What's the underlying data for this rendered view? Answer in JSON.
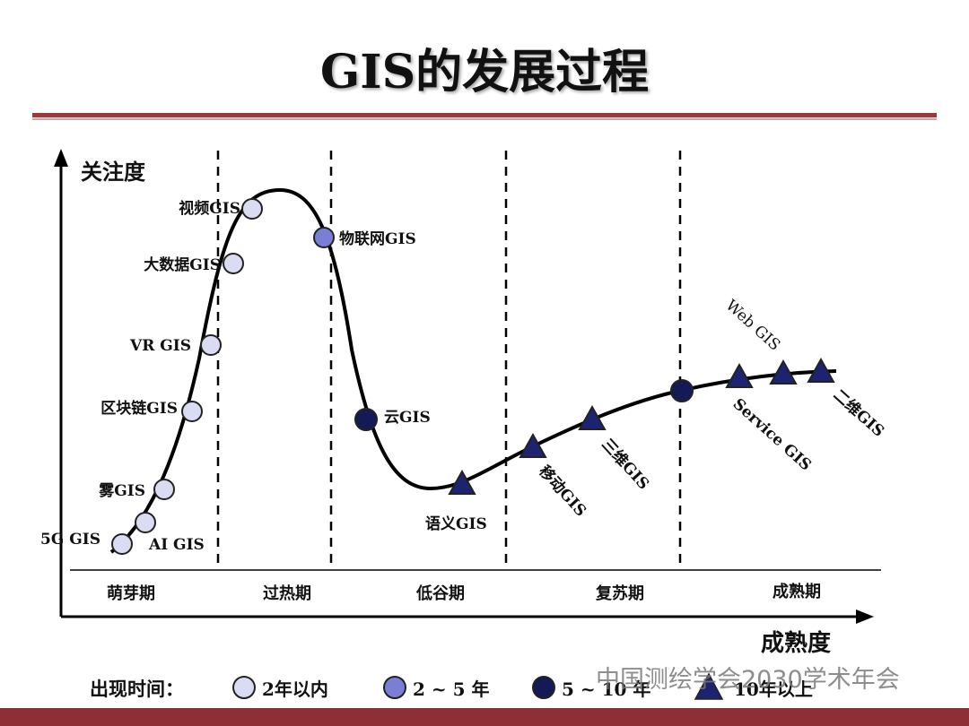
{
  "title": "GIS的发展过程",
  "axes": {
    "y_label": "关注度",
    "x_label": "成熟度"
  },
  "phases": [
    "萌芽期",
    "过热期",
    "低谷期",
    "复苏期",
    "成熟期"
  ],
  "technologies": [
    {
      "label": "5G GIS",
      "marker": "lt2"
    },
    {
      "label": "AI GIS",
      "marker": "lt2"
    },
    {
      "label": "雾GIS",
      "marker": "lt2"
    },
    {
      "label": "区块链GIS",
      "marker": "lt2"
    },
    {
      "label": "VR GIS",
      "marker": "lt2"
    },
    {
      "label": "大数据GIS",
      "marker": "lt2"
    },
    {
      "label": "视频GIS",
      "marker": "lt2"
    },
    {
      "label": "物联网GIS",
      "marker": "2to5"
    },
    {
      "label": "云GIS",
      "marker": "5to10"
    },
    {
      "label": "语义GIS",
      "marker": "gt10"
    },
    {
      "label": "移动GIS",
      "marker": "gt10"
    },
    {
      "label": "三维GIS",
      "marker": "gt10"
    },
    {
      "label": "Web GIS",
      "marker": "5to10"
    },
    {
      "label": "Service GIS",
      "marker": "gt10"
    },
    {
      "label": "二维GIS",
      "marker": "gt10"
    }
  ],
  "legend": {
    "title": "出现时间：",
    "items": [
      {
        "label": "2年以内",
        "marker": "lt2"
      },
      {
        "label": "2 ~ 5 年",
        "marker": "2to5"
      },
      {
        "label": "5 ~ 10 年",
        "marker": "5to10"
      },
      {
        "label": "10年以上",
        "marker": "gt10"
      }
    ]
  },
  "marker_colors": {
    "lt2": "#d9dcf2",
    "2to5": "#7b7fd4",
    "5to10": "#141a55",
    "gt10": "#1c2472"
  },
  "watermark": "中国测绘学会2030学术年会"
}
